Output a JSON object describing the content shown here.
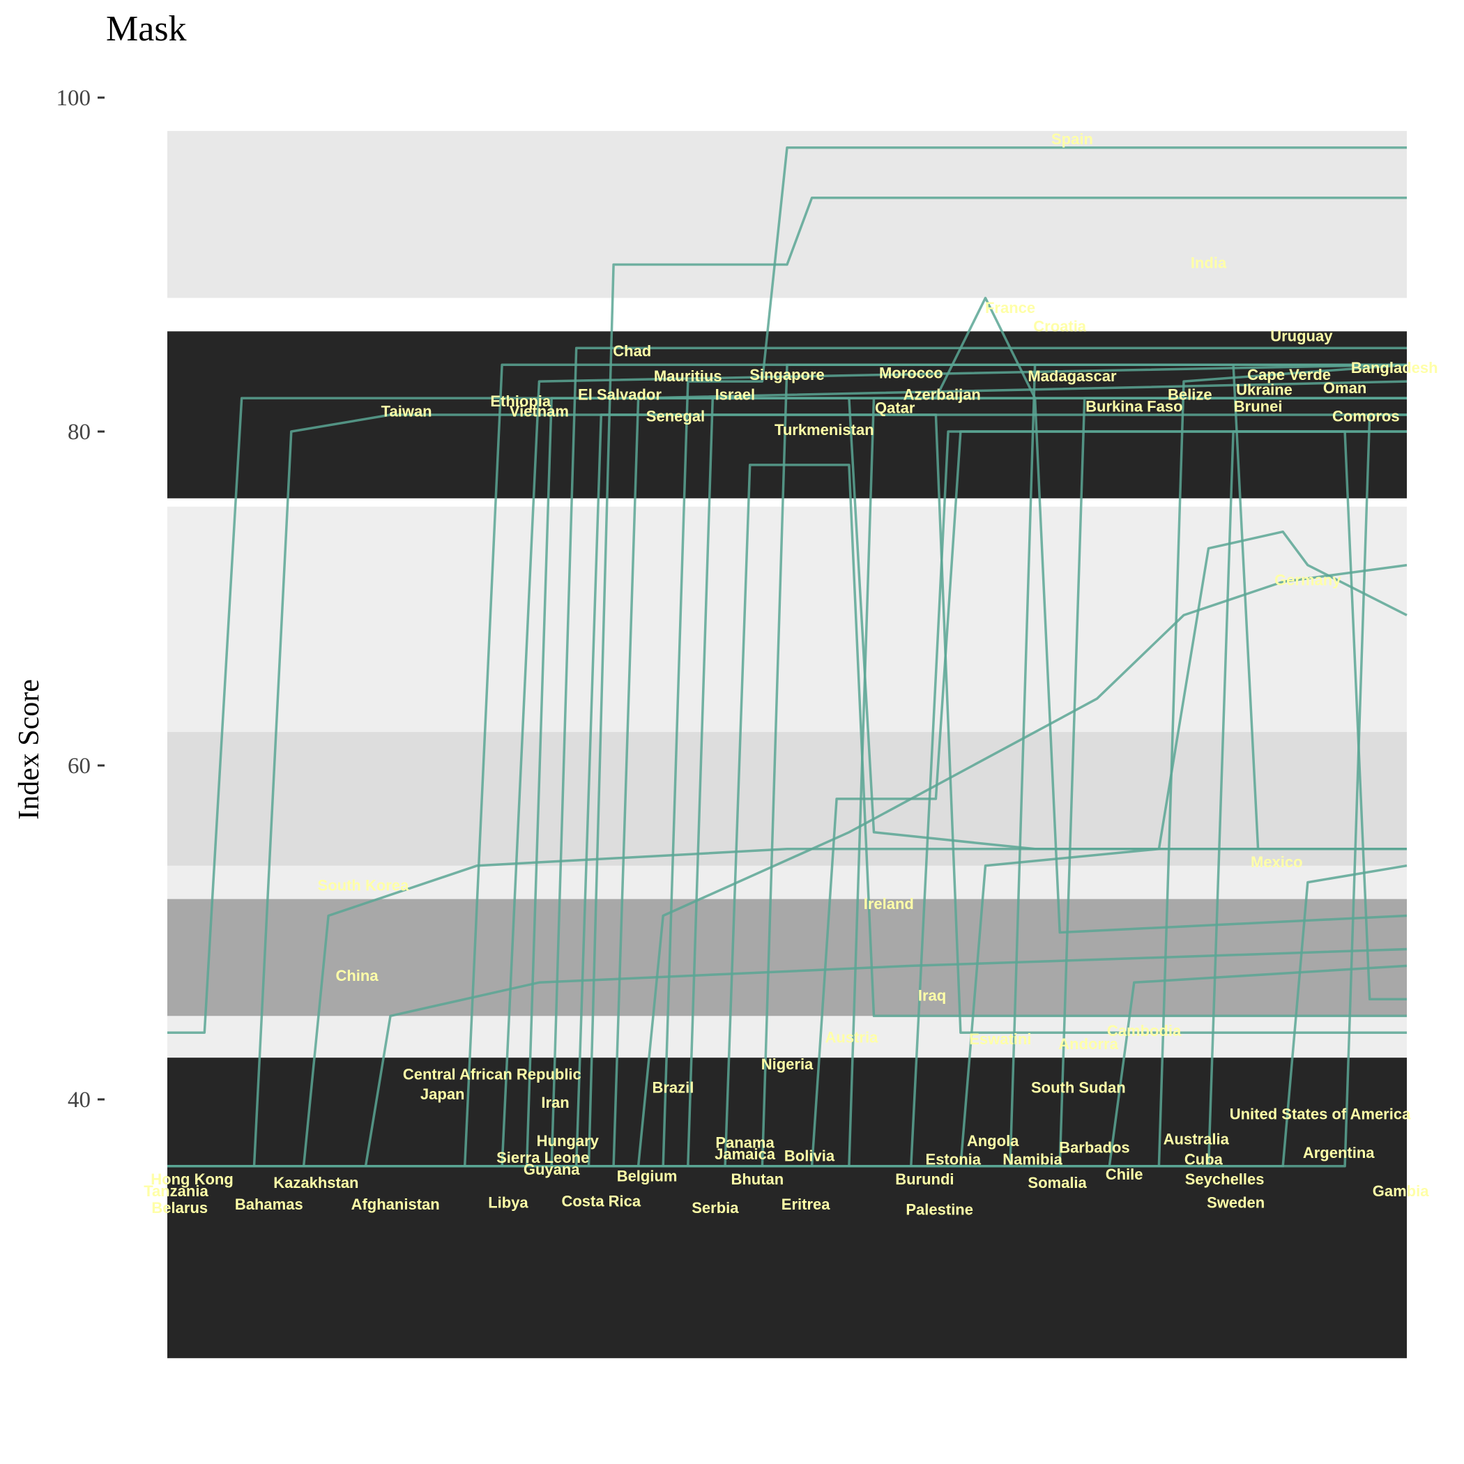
{
  "chart_data": {
    "type": "line",
    "title": "Mask",
    "ylabel": "Index Score",
    "xlabel": "",
    "ylim": [
      22,
      100
    ],
    "y_ticks": [
      40,
      60,
      80,
      100
    ],
    "grid": false,
    "legend": "none",
    "colors": {
      "series_line": "#5aa694",
      "label_text": "#ffffa8",
      "band_dark": "#262626",
      "band_light": "#d8d8d8"
    },
    "background_bands": [
      {
        "low": 24.5,
        "high": 42.5,
        "shade": "dark"
      },
      {
        "low": 76,
        "high": 86,
        "shade": "dark"
      },
      {
        "low": 45,
        "high": 52,
        "shade": "mid"
      },
      {
        "low": 54,
        "high": 62,
        "shade": "light"
      },
      {
        "low": 88,
        "high": 98,
        "shade": "light"
      }
    ],
    "series_paths": [
      [
        [
          0,
          44
        ],
        [
          0.03,
          44
        ],
        [
          0.06,
          82
        ],
        [
          0.12,
          82
        ],
        [
          1,
          82
        ]
      ],
      [
        [
          0,
          36
        ],
        [
          0.07,
          36
        ],
        [
          0.1,
          80
        ],
        [
          0.18,
          81
        ],
        [
          1,
          81
        ]
      ],
      [
        [
          0,
          36
        ],
        [
          0.11,
          36
        ],
        [
          0.13,
          51
        ],
        [
          0.25,
          54
        ],
        [
          0.5,
          55
        ],
        [
          1,
          55
        ]
      ],
      [
        [
          0,
          36
        ],
        [
          0.16,
          36
        ],
        [
          0.18,
          45
        ],
        [
          0.3,
          47
        ],
        [
          0.6,
          48
        ],
        [
          1,
          49
        ]
      ],
      [
        [
          0,
          36
        ],
        [
          0.24,
          36
        ],
        [
          0.27,
          84
        ],
        [
          1,
          84
        ]
      ],
      [
        [
          0,
          36
        ],
        [
          0.27,
          36
        ],
        [
          0.3,
          83
        ],
        [
          1,
          84
        ]
      ],
      [
        [
          0,
          36
        ],
        [
          0.29,
          36
        ],
        [
          0.31,
          82
        ],
        [
          0.55,
          82
        ],
        [
          0.57,
          56
        ],
        [
          0.7,
          55
        ],
        [
          1,
          55
        ]
      ],
      [
        [
          0,
          36
        ],
        [
          0.31,
          36
        ],
        [
          0.33,
          85
        ],
        [
          1,
          85
        ]
      ],
      [
        [
          0,
          36
        ],
        [
          0.33,
          36
        ],
        [
          0.35,
          81
        ],
        [
          0.62,
          81
        ],
        [
          0.64,
          44
        ],
        [
          1,
          44
        ]
      ],
      [
        [
          0,
          36
        ],
        [
          0.34,
          36
        ],
        [
          0.36,
          90
        ],
        [
          0.5,
          90
        ],
        [
          0.52,
          94
        ],
        [
          1,
          94
        ]
      ],
      [
        [
          0,
          36
        ],
        [
          0.36,
          36
        ],
        [
          0.38,
          82
        ],
        [
          1,
          83
        ]
      ],
      [
        [
          0,
          36
        ],
        [
          0.38,
          36
        ],
        [
          0.4,
          51
        ],
        [
          0.55,
          56
        ],
        [
          0.65,
          60
        ],
        [
          0.75,
          64
        ],
        [
          0.82,
          69
        ],
        [
          0.9,
          71
        ],
        [
          1,
          72
        ]
      ],
      [
        [
          0,
          36
        ],
        [
          0.4,
          36
        ],
        [
          0.42,
          83
        ],
        [
          0.48,
          83
        ],
        [
          0.5,
          97
        ],
        [
          1,
          97
        ]
      ],
      [
        [
          0,
          36
        ],
        [
          0.42,
          36
        ],
        [
          0.44,
          82
        ],
        [
          0.62,
          82
        ],
        [
          0.66,
          88
        ],
        [
          0.7,
          82
        ],
        [
          1,
          82
        ]
      ],
      [
        [
          0,
          36
        ],
        [
          0.45,
          36
        ],
        [
          0.47,
          78
        ],
        [
          0.55,
          78
        ],
        [
          0.57,
          45
        ],
        [
          1,
          45
        ]
      ],
      [
        [
          0,
          36
        ],
        [
          0.48,
          36
        ],
        [
          0.5,
          84
        ],
        [
          1,
          84
        ]
      ],
      [
        [
          0,
          36
        ],
        [
          0.52,
          36
        ],
        [
          0.54,
          58
        ],
        [
          0.62,
          58
        ],
        [
          0.64,
          80
        ],
        [
          1,
          80
        ]
      ],
      [
        [
          0,
          36
        ],
        [
          0.55,
          36
        ],
        [
          0.57,
          82
        ],
        [
          0.7,
          82
        ],
        [
          0.72,
          50
        ],
        [
          1,
          51
        ]
      ],
      [
        [
          0,
          36
        ],
        [
          0.6,
          36
        ],
        [
          0.63,
          80
        ],
        [
          1,
          80
        ]
      ],
      [
        [
          0,
          36
        ],
        [
          0.64,
          36
        ],
        [
          0.66,
          54
        ],
        [
          0.8,
          55
        ],
        [
          0.84,
          73
        ],
        [
          0.9,
          74
        ],
        [
          0.92,
          72
        ],
        [
          1,
          69
        ]
      ],
      [
        [
          0,
          36
        ],
        [
          0.68,
          36
        ],
        [
          0.7,
          84
        ],
        [
          0.86,
          84
        ],
        [
          0.88,
          55
        ],
        [
          1,
          55
        ]
      ],
      [
        [
          0,
          36
        ],
        [
          0.72,
          36
        ],
        [
          0.74,
          82
        ],
        [
          1,
          82
        ]
      ],
      [
        [
          0,
          36
        ],
        [
          0.76,
          36
        ],
        [
          0.78,
          47
        ],
        [
          1,
          48
        ]
      ],
      [
        [
          0,
          36
        ],
        [
          0.8,
          36
        ],
        [
          0.82,
          83
        ],
        [
          1,
          84
        ]
      ],
      [
        [
          0,
          36
        ],
        [
          0.84,
          36
        ],
        [
          0.86,
          80
        ],
        [
          0.95,
          80
        ],
        [
          0.97,
          46
        ],
        [
          1,
          46
        ]
      ],
      [
        [
          0,
          36
        ],
        [
          0.9,
          36
        ],
        [
          0.92,
          53
        ],
        [
          1,
          54
        ]
      ],
      [
        [
          0,
          36
        ],
        [
          0.95,
          36
        ],
        [
          0.97,
          81
        ],
        [
          1,
          81
        ]
      ]
    ],
    "labels": [
      {
        "text": "Spain",
        "x": 0.73,
        "y": 97.2
      },
      {
        "text": "India",
        "x": 0.84,
        "y": 89.8
      },
      {
        "text": "France",
        "x": 0.68,
        "y": 87.1
      },
      {
        "text": "Croatia",
        "x": 0.72,
        "y": 86.0
      },
      {
        "text": "Uruguay",
        "x": 0.915,
        "y": 85.4
      },
      {
        "text": "Chad",
        "x": 0.375,
        "y": 84.5
      },
      {
        "text": "Bangladesh",
        "x": 0.99,
        "y": 83.5
      },
      {
        "text": "Morocco",
        "x": 0.6,
        "y": 83.2
      },
      {
        "text": "Mauritius",
        "x": 0.42,
        "y": 83.0
      },
      {
        "text": "Singapore",
        "x": 0.5,
        "y": 83.1
      },
      {
        "text": "Madagascar",
        "x": 0.73,
        "y": 83.0
      },
      {
        "text": "Cape Verde",
        "x": 0.905,
        "y": 83.1
      },
      {
        "text": "Oman",
        "x": 0.95,
        "y": 82.3
      },
      {
        "text": "Ukraine",
        "x": 0.885,
        "y": 82.2
      },
      {
        "text": "Belize",
        "x": 0.825,
        "y": 81.9
      },
      {
        "text": "El Salvador",
        "x": 0.365,
        "y": 81.9
      },
      {
        "text": "Israel",
        "x": 0.458,
        "y": 81.9
      },
      {
        "text": "Azerbaijan",
        "x": 0.625,
        "y": 81.9
      },
      {
        "text": "Ethiopia",
        "x": 0.285,
        "y": 81.5
      },
      {
        "text": "Qatar",
        "x": 0.587,
        "y": 81.1
      },
      {
        "text": "Burkina Faso",
        "x": 0.78,
        "y": 81.2
      },
      {
        "text": "Brunei",
        "x": 0.88,
        "y": 81.2
      },
      {
        "text": "Taiwan",
        "x": 0.193,
        "y": 80.9
      },
      {
        "text": "Vietnam",
        "x": 0.3,
        "y": 80.9
      },
      {
        "text": "Senegal",
        "x": 0.41,
        "y": 80.6
      },
      {
        "text": "Comoros",
        "x": 0.967,
        "y": 80.6
      },
      {
        "text": "Turkmenistan",
        "x": 0.53,
        "y": 79.8
      },
      {
        "text": "Germany",
        "x": 0.92,
        "y": 70.8
      },
      {
        "text": "Mexico",
        "x": 0.895,
        "y": 53.9
      },
      {
        "text": "South Korea",
        "x": 0.158,
        "y": 52.5
      },
      {
        "text": "Ireland",
        "x": 0.582,
        "y": 51.4
      },
      {
        "text": "China",
        "x": 0.153,
        "y": 47.1
      },
      {
        "text": "Iraq",
        "x": 0.617,
        "y": 45.9
      },
      {
        "text": "Cambodia",
        "x": 0.788,
        "y": 43.8
      },
      {
        "text": "Austria",
        "x": 0.552,
        "y": 43.4
      },
      {
        "text": "Eswatini",
        "x": 0.672,
        "y": 43.3
      },
      {
        "text": "Andorra",
        "x": 0.743,
        "y": 43.0
      },
      {
        "text": "Nigeria",
        "x": 0.5,
        "y": 41.8
      },
      {
        "text": "Central African Republic",
        "x": 0.262,
        "y": 41.2
      },
      {
        "text": "South Sudan",
        "x": 0.735,
        "y": 40.4
      },
      {
        "text": "Brazil",
        "x": 0.408,
        "y": 40.4
      },
      {
        "text": "Japan",
        "x": 0.222,
        "y": 40.0
      },
      {
        "text": "Iran",
        "x": 0.313,
        "y": 39.5
      },
      {
        "text": "United States of America",
        "x": 0.93,
        "y": 38.8
      },
      {
        "text": "Hungary",
        "x": 0.323,
        "y": 37.2
      },
      {
        "text": "Angola",
        "x": 0.666,
        "y": 37.2
      },
      {
        "text": "Australia",
        "x": 0.83,
        "y": 37.3
      },
      {
        "text": "Panama",
        "x": 0.466,
        "y": 37.1
      },
      {
        "text": "Barbados",
        "x": 0.748,
        "y": 36.8
      },
      {
        "text": "Jamaica",
        "x": 0.466,
        "y": 36.4
      },
      {
        "text": "Argentina",
        "x": 0.945,
        "y": 36.5
      },
      {
        "text": "Bolivia",
        "x": 0.518,
        "y": 36.3
      },
      {
        "text": "Sierra Leone",
        "x": 0.303,
        "y": 36.2
      },
      {
        "text": "Estonia",
        "x": 0.634,
        "y": 36.1
      },
      {
        "text": "Namibia",
        "x": 0.698,
        "y": 36.1
      },
      {
        "text": "Cuba",
        "x": 0.836,
        "y": 36.1
      },
      {
        "text": "Guyana",
        "x": 0.31,
        "y": 35.5
      },
      {
        "text": "Chile",
        "x": 0.772,
        "y": 35.2
      },
      {
        "text": "Belgium",
        "x": 0.387,
        "y": 35.1
      },
      {
        "text": "Hong Kong",
        "x": 0.02,
        "y": 34.9
      },
      {
        "text": "Bhutan",
        "x": 0.476,
        "y": 34.9
      },
      {
        "text": "Seychelles",
        "x": 0.853,
        "y": 34.9
      },
      {
        "text": "Burundi",
        "x": 0.611,
        "y": 34.9
      },
      {
        "text": "Kazakhstan",
        "x": 0.12,
        "y": 34.7
      },
      {
        "text": "Somalia",
        "x": 0.718,
        "y": 34.7
      },
      {
        "text": "Tanzania",
        "x": 0.007,
        "y": 34.2
      },
      {
        "text": "Gambia",
        "x": 0.995,
        "y": 34.2
      },
      {
        "text": "Costa Rica",
        "x": 0.35,
        "y": 33.6
      },
      {
        "text": "Sweden",
        "x": 0.862,
        "y": 33.5
      },
      {
        "text": "Bahamas",
        "x": 0.082,
        "y": 33.4
      },
      {
        "text": "Afghanistan",
        "x": 0.184,
        "y": 33.4
      },
      {
        "text": "Libya",
        "x": 0.275,
        "y": 33.5
      },
      {
        "text": "Eritrea",
        "x": 0.515,
        "y": 33.4
      },
      {
        "text": "Belarus",
        "x": 0.01,
        "y": 33.2
      },
      {
        "text": "Serbia",
        "x": 0.442,
        "y": 33.2
      },
      {
        "text": "Palestine",
        "x": 0.623,
        "y": 33.1
      }
    ]
  }
}
